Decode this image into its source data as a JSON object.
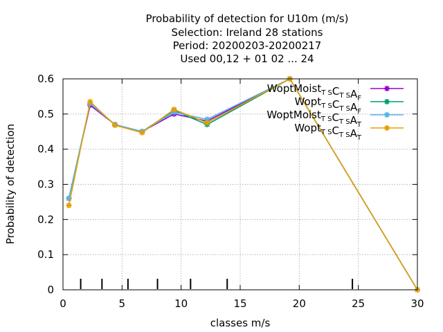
{
  "chart_data": {
    "type": "line",
    "title_lines": [
      "Probability of detection  for U10m (m/s)",
      "Selection: Ireland     28 stations",
      "Period: 20200203-20200217",
      "Used  00,12  + 01 02 ... 24"
    ],
    "xlabel": "classes m/s",
    "ylabel": "Probability of detection",
    "xlim": [
      0,
      30
    ],
    "ylim": [
      0,
      0.6
    ],
    "xticks": [
      0,
      5,
      10,
      15,
      20,
      25,
      30
    ],
    "yticks": [
      0,
      0.1,
      0.2,
      0.3,
      0.4,
      0.5,
      0.6
    ],
    "grid": true,
    "legend_position": "top-right",
    "class_boundaries": [
      1.5,
      3.3,
      5.5,
      8.0,
      10.8,
      13.9,
      24.5
    ],
    "series": [
      {
        "name": "WoptMoist TS CTS AF",
        "label_parts": [
          [
            "WoptMoist",
            ""
          ],
          [
            "",
            "T S"
          ],
          [
            "C",
            ""
          ],
          [
            "",
            "T S"
          ],
          [
            "A",
            ""
          ],
          [
            "",
            "F"
          ]
        ],
        "color": "#9400d3",
        "x": [
          0.5,
          2.3,
          4.4,
          6.7,
          9.4,
          12.2,
          19.2,
          30
        ],
        "y": [
          0.26,
          0.525,
          0.47,
          0.45,
          0.5,
          0.48,
          0.6,
          0.0
        ]
      },
      {
        "name": "Wopt TS CTS AF",
        "label_parts": [
          [
            "Wopt",
            ""
          ],
          [
            "",
            "T S"
          ],
          [
            "C",
            ""
          ],
          [
            "",
            "T S"
          ],
          [
            "A",
            ""
          ],
          [
            "",
            "F"
          ]
        ],
        "color": "#009e73",
        "x": [
          0.5,
          2.3,
          4.4,
          6.7,
          9.4,
          12.2,
          19.2,
          30
        ],
        "y": [
          0.26,
          0.53,
          0.47,
          0.45,
          0.51,
          0.47,
          0.6,
          0.0
        ]
      },
      {
        "name": "WoptMoist TS CTS AT",
        "label_parts": [
          [
            "WoptMoist",
            ""
          ],
          [
            "",
            "T S"
          ],
          [
            "C",
            ""
          ],
          [
            "",
            "T S"
          ],
          [
            "A",
            ""
          ],
          [
            "",
            "T"
          ]
        ],
        "color": "#56b4e9",
        "x": [
          0.5,
          2.3,
          4.4,
          6.7,
          9.4,
          12.2,
          19.2,
          30
        ],
        "y": [
          0.26,
          0.53,
          0.47,
          0.45,
          0.505,
          0.485,
          0.6,
          0.0
        ]
      },
      {
        "name": "Wopt TS CTS AT",
        "label_parts": [
          [
            "Wopt",
            ""
          ],
          [
            "",
            "T S"
          ],
          [
            "C",
            ""
          ],
          [
            "",
            "T S"
          ],
          [
            "A",
            ""
          ],
          [
            "",
            "T"
          ]
        ],
        "color": "#e69f00",
        "x": [
          0.5,
          2.3,
          4.4,
          6.7,
          9.4,
          12.2,
          19.2,
          30
        ],
        "y": [
          0.24,
          0.535,
          0.468,
          0.447,
          0.513,
          0.475,
          0.6,
          0.0
        ]
      }
    ]
  }
}
